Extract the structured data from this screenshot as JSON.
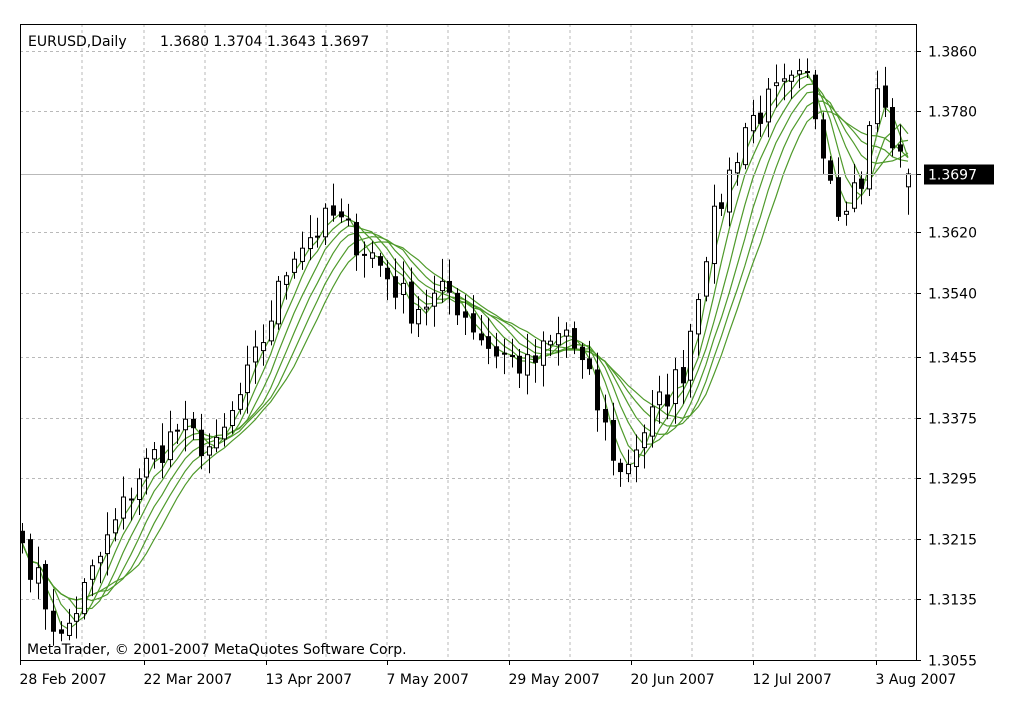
{
  "header": {
    "symbol_label": "EURUSD,Daily",
    "ohlc_text": "1.3680 1.3704 1.3643 1.3697"
  },
  "copyright": "MetaTrader, © 2001-2007 MetaQuotes Software Corp.",
  "current_price_label": "1.3697",
  "colors": {
    "background": "#ffffff",
    "grid": "#b9b9b9",
    "candle": "#000000",
    "ma": "#4f9a2b",
    "price_tag_bg": "#000000",
    "price_tag_text": "#ffffff"
  },
  "chart_data": {
    "type": "candlestick",
    "title": "EURUSD,Daily",
    "ylim": [
      1.3055,
      1.3895
    ],
    "y_ticks": [
      "1.3860",
      "1.3780",
      "1.3697",
      "1.3620",
      "1.3540",
      "1.3455",
      "1.3375",
      "1.3295",
      "1.3215",
      "1.3135",
      "1.3055"
    ],
    "x_ticks": [
      "28 Feb 2007",
      "22 Mar 2007",
      "13 Apr 2007",
      "7 May 2007",
      "29 May 2007",
      "20 Jun 2007",
      "12 Jul 2007",
      "3 Aug 2007"
    ],
    "grid": true,
    "last_close": 1.3697,
    "waypoints": [
      {
        "i": 0,
        "c": 1.321
      },
      {
        "i": 5,
        "c": 1.308
      },
      {
        "i": 10,
        "c": 1.319
      },
      {
        "i": 15,
        "c": 1.33
      },
      {
        "i": 20,
        "c": 1.336
      },
      {
        "i": 25,
        "c": 1.333
      },
      {
        "i": 30,
        "c": 1.345
      },
      {
        "i": 35,
        "c": 1.36
      },
      {
        "i": 40,
        "c": 1.364
      },
      {
        "i": 45,
        "c": 1.359
      },
      {
        "i": 50,
        "c": 1.352
      },
      {
        "i": 55,
        "c": 1.354
      },
      {
        "i": 60,
        "c": 1.347
      },
      {
        "i": 65,
        "c": 1.344
      },
      {
        "i": 70,
        "c": 1.349
      },
      {
        "i": 73,
        "c": 1.342
      },
      {
        "i": 77,
        "c": 1.33
      },
      {
        "i": 80,
        "c": 1.336
      },
      {
        "i": 85,
        "c": 1.344
      },
      {
        "i": 88,
        "c": 1.36
      },
      {
        "i": 93,
        "c": 1.376
      },
      {
        "i": 97,
        "c": 1.38
      },
      {
        "i": 101,
        "c": 1.382
      },
      {
        "i": 105,
        "c": 1.366
      },
      {
        "i": 108,
        "c": 1.369
      },
      {
        "i": 110,
        "c": 1.381
      },
      {
        "i": 113,
        "c": 1.371
      },
      {
        "i": 114,
        "c": 1.3697
      }
    ],
    "moving_averages": [
      {
        "period": 3
      },
      {
        "period": 5
      },
      {
        "period": 7
      },
      {
        "period": 9
      },
      {
        "period": 11
      },
      {
        "period": 13
      }
    ]
  }
}
